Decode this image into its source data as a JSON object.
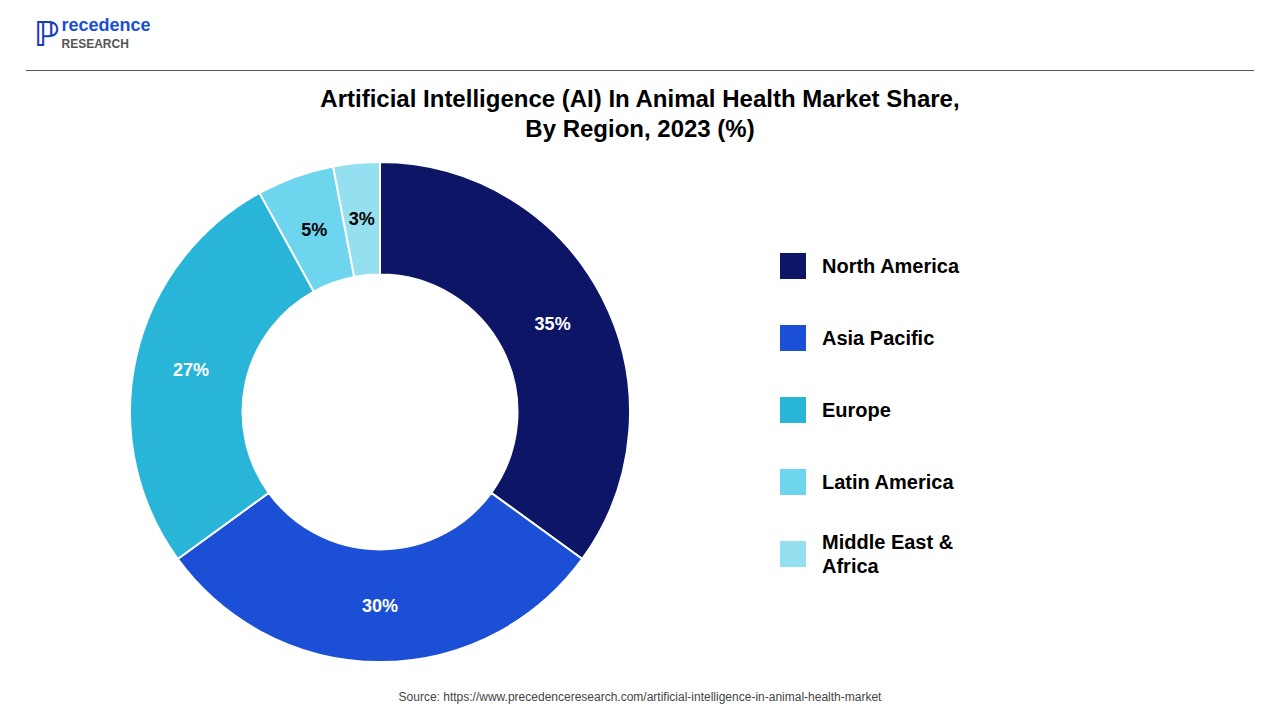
{
  "chart_data": {
    "type": "pie",
    "title": "Artificial Intelligence (AI) In Animal Health Market Share,\nBy Region, 2023 (%)",
    "categories": [
      "North America",
      "Asia Pacific",
      "Europe",
      "Latin America",
      "Middle East &\nAfrica"
    ],
    "values": [
      35,
      30,
      27,
      5,
      3
    ],
    "value_labels": [
      "35%",
      "30%",
      "27%",
      "5%",
      "3%"
    ],
    "colors": [
      "#0d1566",
      "#1a4fd6",
      "#29b5d8",
      "#6dd5ee",
      "#94e0f0"
    ],
    "data_labels": true,
    "legend": "right",
    "annotations": [
      "ℙ",
      "recedence",
      "RESEARCH",
      "Source: https://www.precedenceresearch.com/artificial-intelligence-in-animal-health-market"
    ]
  }
}
